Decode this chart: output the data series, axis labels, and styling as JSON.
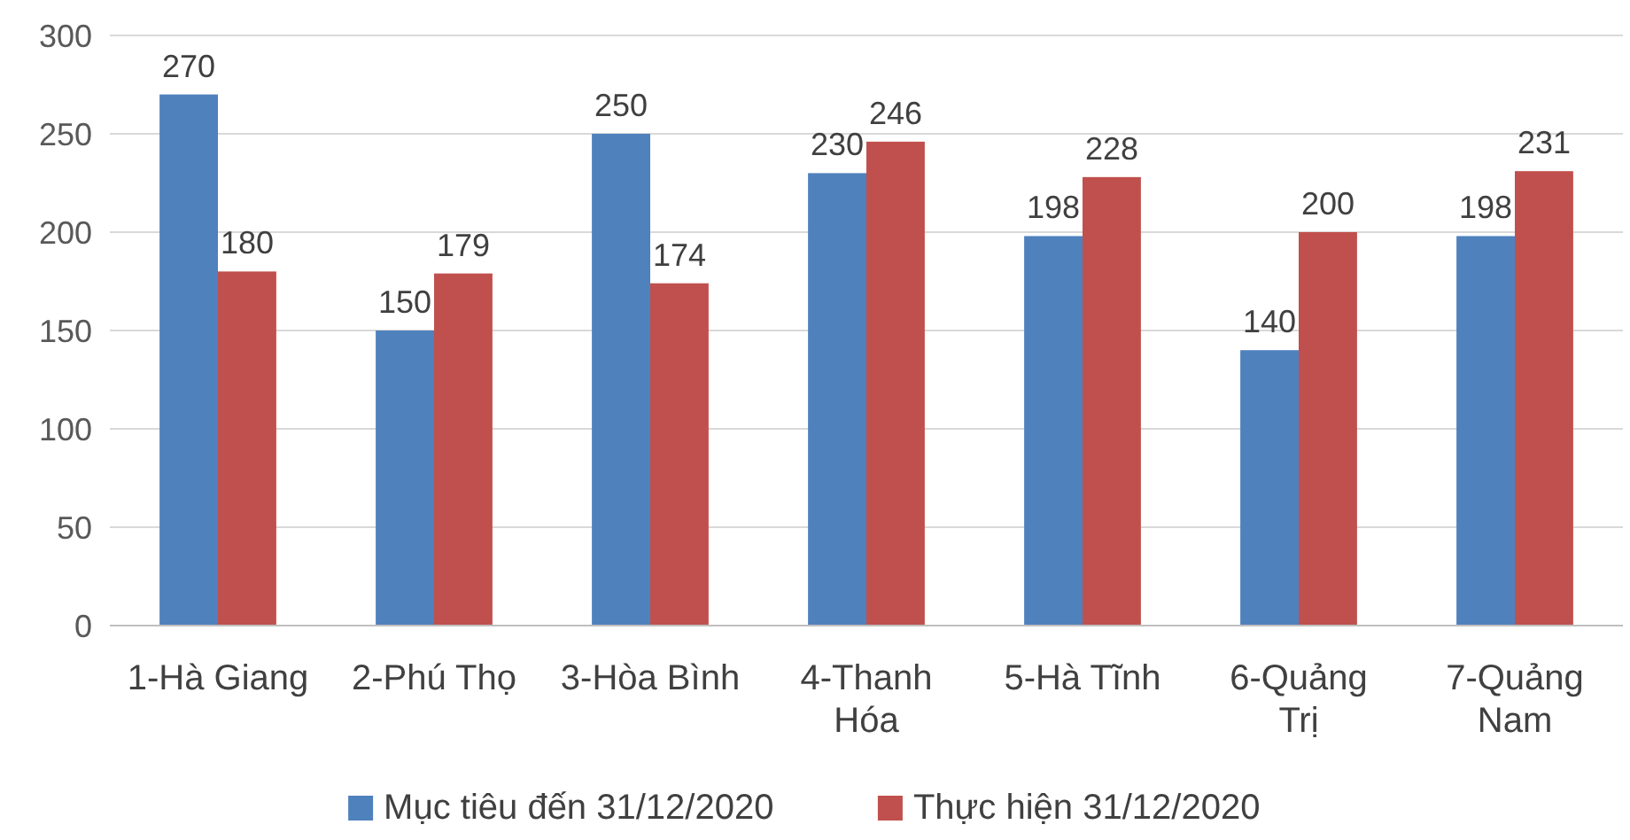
{
  "chart_data": {
    "type": "bar",
    "categories": [
      "1-Hà Giang",
      "2-Phú Thọ",
      "3-Hòa Bình",
      "4-Thanh Hóa",
      "5-Hà Tĩnh",
      "6-Quảng Trị",
      "7-Quảng Nam"
    ],
    "series": [
      {
        "name": "Mục tiêu đến 31/12/2020",
        "color": "#4f81bd",
        "values": [
          270,
          150,
          250,
          230,
          198,
          140,
          198
        ]
      },
      {
        "name": "Thực hiện 31/12/2020",
        "color": "#c0504d",
        "values": [
          180,
          179,
          174,
          246,
          228,
          200,
          231
        ]
      }
    ],
    "ylim": [
      0,
      300
    ],
    "yticks": [
      0,
      50,
      100,
      150,
      200,
      250,
      300
    ],
    "grid": "y",
    "legend": "bottom",
    "data_labels": true
  }
}
